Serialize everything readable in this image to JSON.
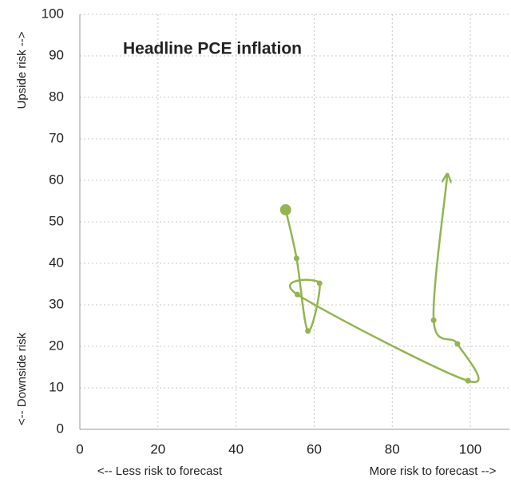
{
  "chart_data": {
    "type": "scatter",
    "title": "Headline PCE inflation",
    "ylabel_top": "Upside risk -->",
    "ylabel_bottom": "<-- Downside risk",
    "xlabel_left": "<-- Less risk to forecast",
    "xlabel_right": "More risk to forecast -->",
    "x": [
      52.7,
      55.5,
      58.4,
      61.4,
      55.7,
      99.4,
      96.7,
      90.6,
      94.1
    ],
    "values": [
      52.9,
      41.2,
      23.7,
      35.2,
      32.5,
      11.7,
      20.6,
      26.3,
      61.3
    ],
    "color": "#92b550",
    "xlim": [
      0,
      110
    ],
    "xticks": [
      0,
      20,
      40,
      60,
      80,
      100
    ],
    "ylim": [
      0,
      100
    ],
    "yticks": [
      0,
      10,
      20,
      30,
      40,
      50,
      60,
      70,
      80,
      90,
      100
    ],
    "grid": true
  }
}
